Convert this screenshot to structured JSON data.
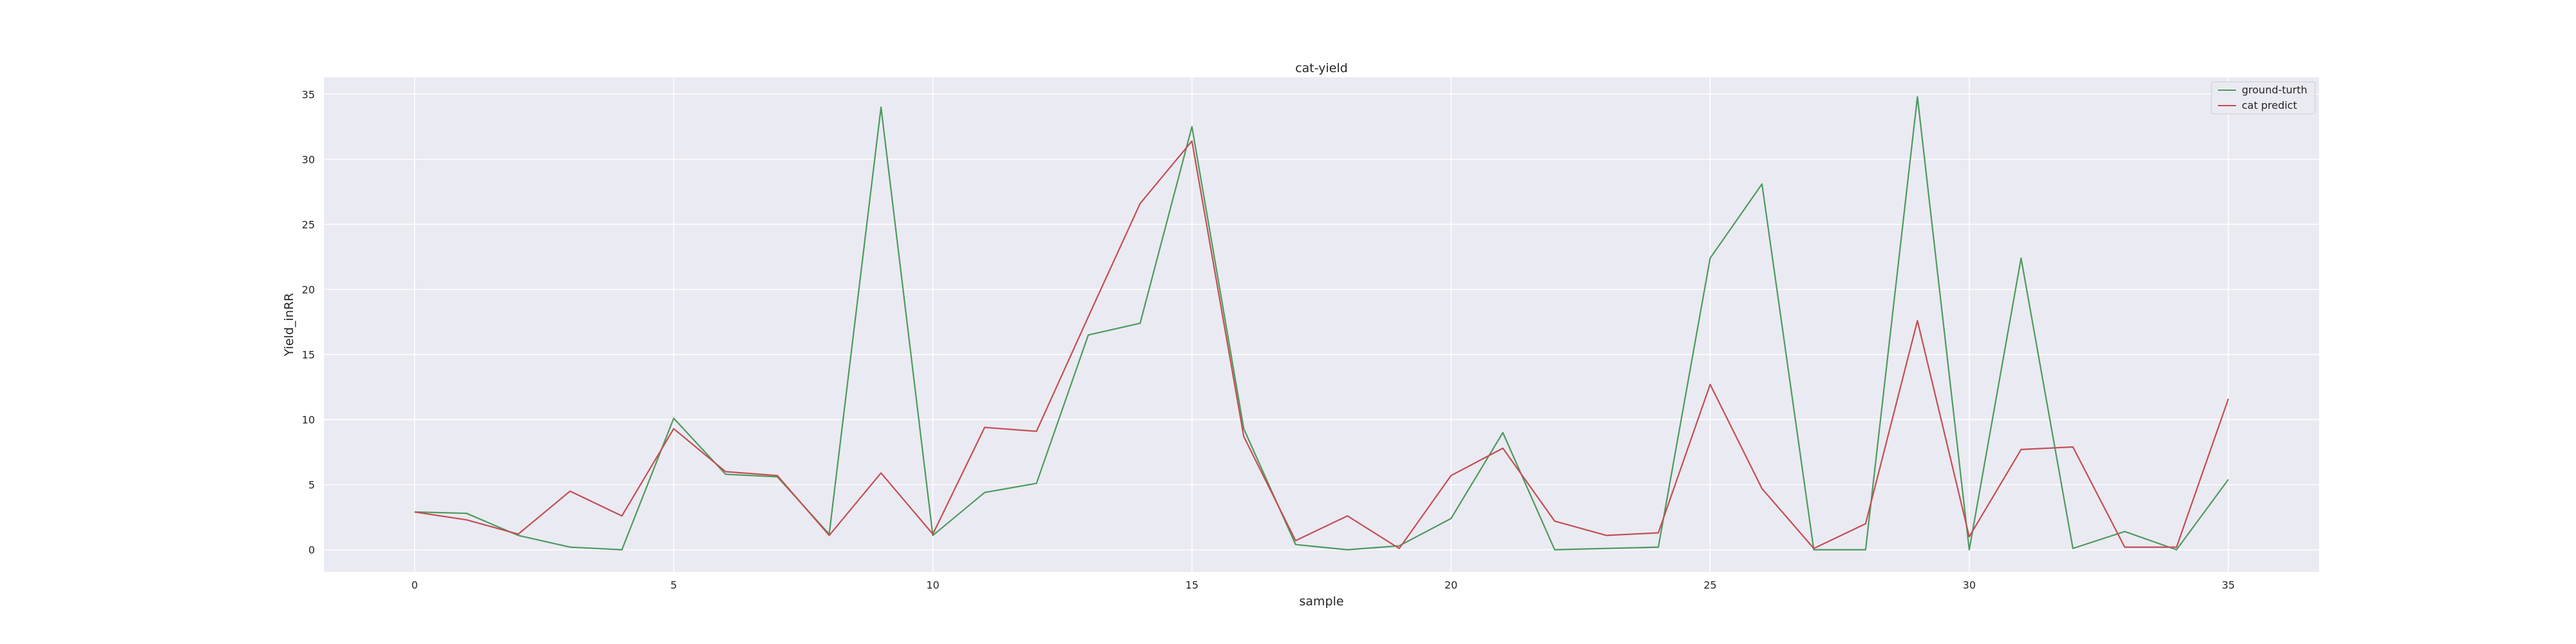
{
  "chart_data": {
    "type": "line",
    "title": "cat-yield",
    "xlabel": "sample",
    "ylabel": "Yield_inRR",
    "x": [
      0,
      1,
      2,
      3,
      4,
      5,
      6,
      7,
      8,
      9,
      10,
      11,
      12,
      13,
      14,
      15,
      16,
      17,
      18,
      19,
      20,
      21,
      22,
      23,
      24,
      25,
      26,
      27,
      28,
      29,
      30,
      31,
      32,
      33,
      34,
      35
    ],
    "xlim": [
      -1.75,
      36.75
    ],
    "ylim": [
      -1.7,
      36.3
    ],
    "xticks": [
      0,
      5,
      10,
      15,
      20,
      25,
      30,
      35
    ],
    "yticks": [
      0,
      5,
      10,
      15,
      20,
      25,
      30,
      35
    ],
    "grid": true,
    "legend_position": "top-right",
    "series": [
      {
        "name": "ground-turth",
        "color": "#4d9a5d",
        "values": [
          2.9,
          2.8,
          1.1,
          0.2,
          0.0,
          10.1,
          5.8,
          5.6,
          1.2,
          34.0,
          1.1,
          4.4,
          5.1,
          16.5,
          17.4,
          32.5,
          9.3,
          0.4,
          0.0,
          0.3,
          2.4,
          9.0,
          0.0,
          0.1,
          0.2,
          22.4,
          28.1,
          0.0,
          0.0,
          34.8,
          0.0,
          22.4,
          0.1,
          1.4,
          0.0,
          5.4
        ]
      },
      {
        "name": "cat predict",
        "color": "#c44e52",
        "values": [
          2.9,
          2.3,
          1.2,
          4.5,
          2.6,
          9.3,
          6.0,
          5.7,
          1.1,
          5.9,
          1.2,
          9.4,
          9.1,
          17.9,
          26.6,
          31.4,
          8.7,
          0.7,
          2.6,
          0.1,
          5.7,
          7.8,
          2.2,
          1.1,
          1.3,
          12.7,
          4.7,
          0.1,
          2.0,
          17.6,
          1.0,
          7.7,
          7.9,
          0.2,
          0.2,
          11.6
        ]
      }
    ]
  }
}
